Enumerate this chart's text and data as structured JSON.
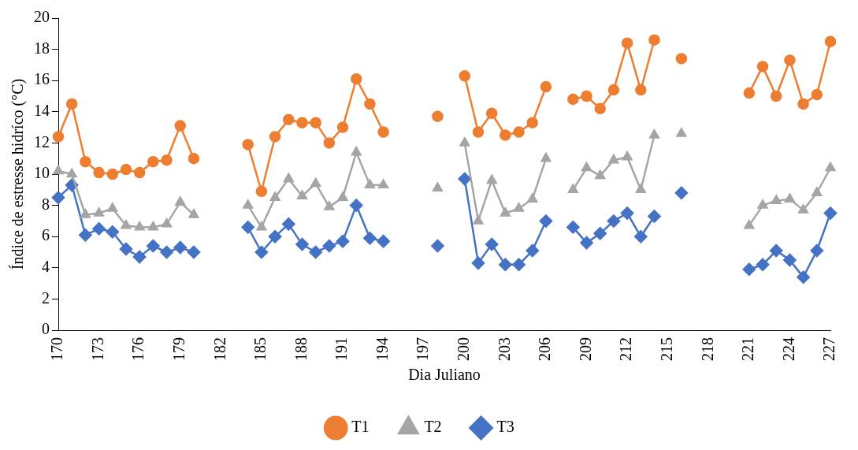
{
  "chart_data": {
    "type": "line",
    "xlabel": "Dia Juliano",
    "ylabel": "Índice de estresse hidríco (°C)",
    "categories": [
      "170",
      null,
      null,
      "173",
      null,
      null,
      "176",
      null,
      null,
      "179",
      null,
      null,
      "182",
      null,
      null,
      "185",
      null,
      null,
      "188",
      null,
      null,
      "191",
      null,
      null,
      "194",
      null,
      null,
      "197",
      null,
      null,
      "200",
      null,
      null,
      "203",
      null,
      null,
      "206",
      null,
      null,
      "209",
      null,
      null,
      "212",
      null,
      null,
      "215",
      null,
      null,
      "218",
      null,
      null,
      "221",
      null,
      null,
      "224",
      null,
      null,
      "227"
    ],
    "series": [
      {
        "name": "T1",
        "color": "#ed7d31",
        "marker": "circle",
        "values": [
          12.4,
          14.5,
          10.8,
          10.1,
          10.0,
          10.3,
          10.1,
          10.8,
          10.9,
          13.1,
          11.0,
          null,
          null,
          null,
          11.9,
          8.9,
          12.4,
          13.5,
          13.3,
          13.3,
          12.0,
          13.0,
          16.1,
          14.5,
          12.7,
          null,
          null,
          null,
          13.7,
          null,
          16.3,
          12.7,
          13.9,
          12.5,
          12.7,
          13.3,
          15.6,
          null,
          14.8,
          15.0,
          14.2,
          15.4,
          18.4,
          15.4,
          18.6,
          null,
          17.4,
          null,
          null,
          null,
          null,
          15.2,
          16.9,
          15.0,
          17.3,
          14.5,
          15.1,
          18.5
        ]
      },
      {
        "name": "T2",
        "color": "#a5a5a5",
        "marker": "triangle",
        "values": [
          10.2,
          10.0,
          7.4,
          7.5,
          7.8,
          6.7,
          6.6,
          6.6,
          6.8,
          8.2,
          7.4,
          null,
          null,
          null,
          8.0,
          6.6,
          8.5,
          9.7,
          8.6,
          9.4,
          7.9,
          8.5,
          11.4,
          9.3,
          9.3,
          null,
          null,
          null,
          9.1,
          null,
          12.0,
          7.0,
          9.6,
          7.5,
          7.8,
          8.4,
          11.0,
          null,
          9.0,
          10.4,
          9.9,
          10.9,
          11.1,
          9.0,
          12.5,
          null,
          12.6,
          null,
          null,
          null,
          null,
          6.7,
          8.0,
          8.3,
          8.4,
          7.7,
          8.8,
          10.4
        ]
      },
      {
        "name": "T3",
        "color": "#4472c4",
        "marker": "diamond",
        "values": [
          8.5,
          9.3,
          6.1,
          6.5,
          6.3,
          5.2,
          4.7,
          5.4,
          5.0,
          5.3,
          5.0,
          null,
          null,
          null,
          6.6,
          5.0,
          6.0,
          6.8,
          5.5,
          5.0,
          5.4,
          5.7,
          8.0,
          5.9,
          5.7,
          null,
          null,
          null,
          5.4,
          null,
          9.7,
          4.3,
          5.5,
          4.2,
          4.2,
          5.1,
          7.0,
          null,
          6.6,
          5.6,
          6.2,
          7.0,
          7.5,
          6.0,
          7.3,
          null,
          8.8,
          null,
          null,
          null,
          null,
          3.9,
          4.2,
          5.1,
          4.5,
          3.4,
          5.1,
          7.5
        ]
      }
    ],
    "ylim": [
      0,
      20
    ],
    "yticks": [
      0,
      2,
      4,
      6,
      8,
      10,
      12,
      14,
      16,
      18,
      20
    ],
    "grid": false,
    "legend": "bottom",
    "line_style": "solid"
  }
}
